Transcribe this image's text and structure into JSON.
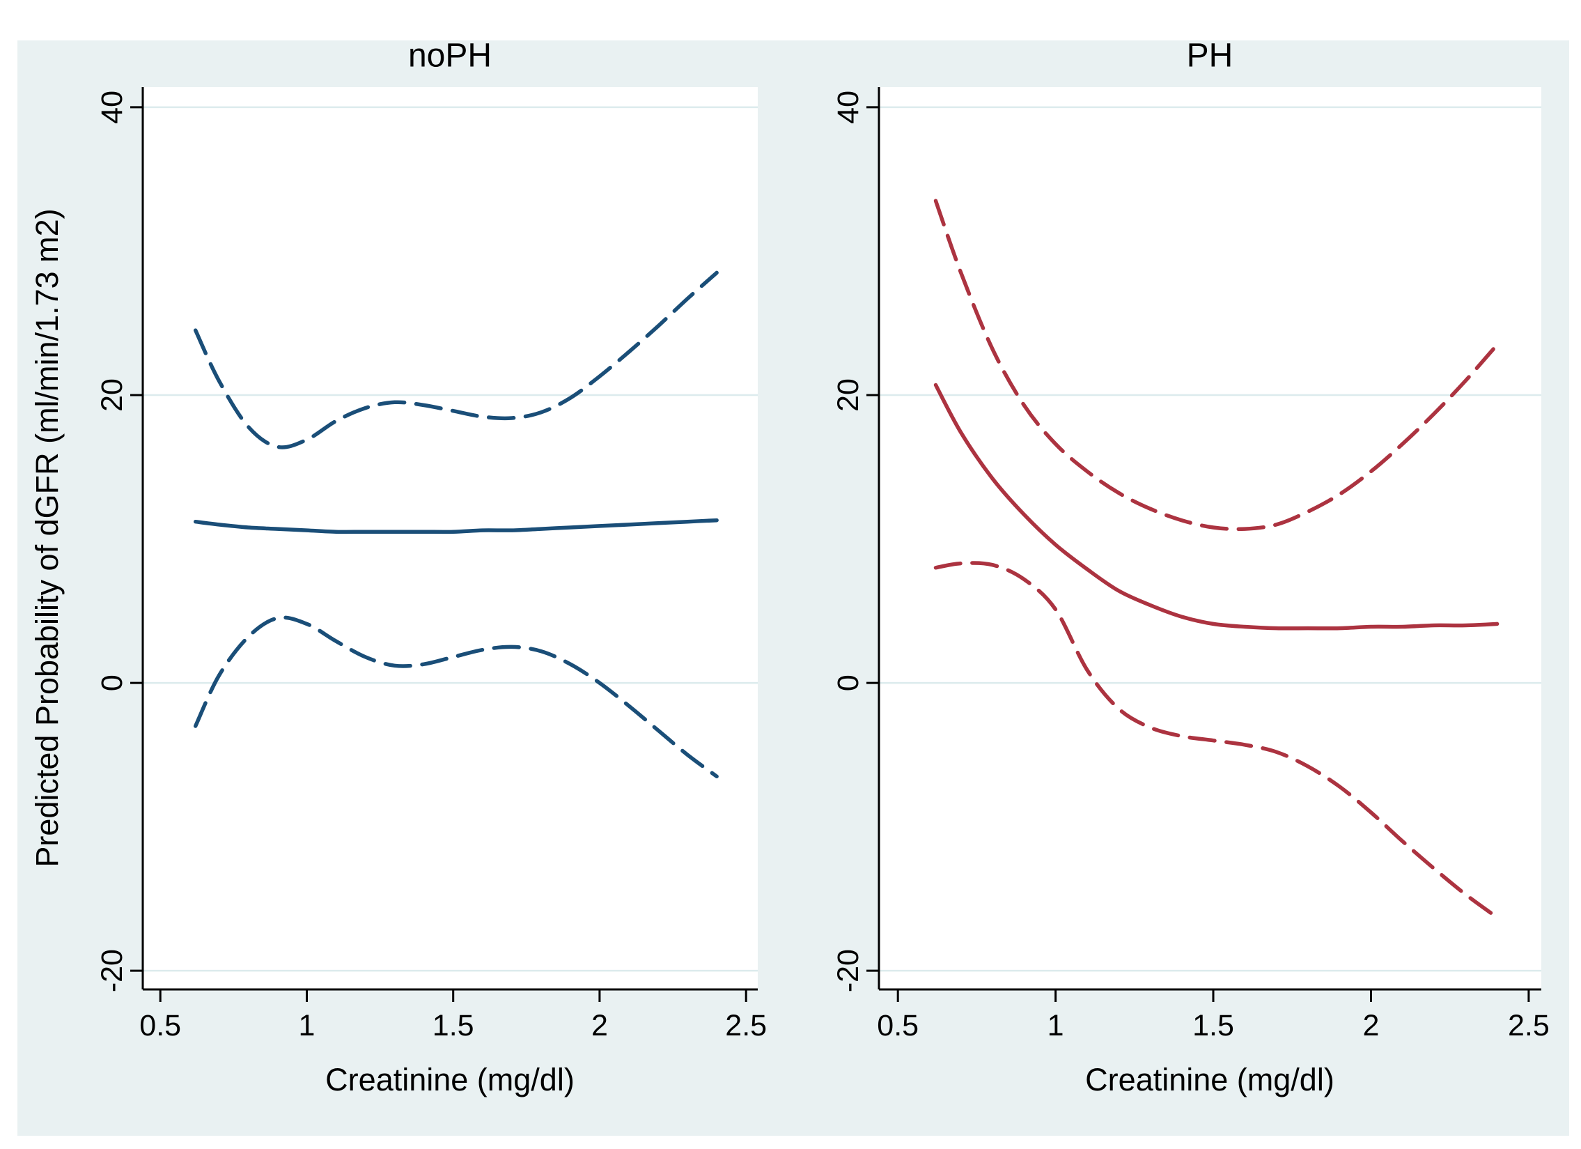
{
  "figure": {
    "y_axis_title": "Predicted Probability of dGFR (ml/min/1.73 m2)",
    "x_axis_title": "Creatinine (mg/dl)"
  },
  "palette": {
    "page_bg": "#ffffff",
    "region_bg": "#e9f1f2",
    "plot_bg": "#ffffff",
    "gridline": "#dcebed",
    "axis": "#000000",
    "navy": "#1a4e78",
    "maroon": "#ac3340"
  },
  "chart_data": [
    {
      "type": "line",
      "title": "noPH",
      "xlabel": "Creatinine (mg/dl)",
      "ylabel": "Predicted Probability of dGFR (ml/min/1.73 m2)",
      "xlim": [
        0.44,
        2.54
      ],
      "ylim": [
        -21.3,
        41.4
      ],
      "x_ticks": [
        0.5,
        1,
        1.5,
        2,
        2.5
      ],
      "y_ticks": [
        -20,
        0,
        20,
        40
      ],
      "grid": "horizontal gridlines at y ticks",
      "legend": "none",
      "color": "#1a4e78",
      "x": [
        0.62,
        0.7,
        0.8,
        0.9,
        1.0,
        1.1,
        1.2,
        1.3,
        1.4,
        1.5,
        1.6,
        1.7,
        1.8,
        1.9,
        2.0,
        2.1,
        2.2,
        2.3,
        2.4
      ],
      "series": [
        {
          "name": "upper-ci",
          "style": "dashed",
          "x": [
            0.62,
            0.7,
            0.8,
            0.9,
            1.0,
            1.1,
            1.2,
            1.3,
            1.4,
            1.5,
            1.6,
            1.7,
            1.8,
            1.9,
            2.0,
            2.1,
            2.2,
            2.3,
            2.4
          ],
          "y": [
            24.5,
            21.0,
            17.8,
            16.4,
            16.9,
            18.2,
            19.1,
            19.5,
            19.3,
            18.9,
            18.5,
            18.4,
            18.8,
            19.8,
            21.3,
            23.0,
            24.8,
            26.7,
            28.5
          ]
        },
        {
          "name": "fit",
          "style": "solid",
          "x": [
            0.62,
            0.7,
            0.8,
            0.9,
            1.0,
            1.1,
            1.2,
            1.3,
            1.4,
            1.5,
            1.6,
            1.7,
            1.8,
            1.9,
            2.0,
            2.1,
            2.2,
            2.3,
            2.4
          ],
          "y": [
            11.2,
            11.0,
            10.8,
            10.7,
            10.6,
            10.5,
            10.5,
            10.5,
            10.5,
            10.5,
            10.6,
            10.6,
            10.7,
            10.8,
            10.9,
            11.0,
            11.1,
            11.2,
            11.3
          ]
        },
        {
          "name": "lower-ci",
          "style": "dashed",
          "x": [
            0.62,
            0.7,
            0.8,
            0.9,
            1.0,
            1.1,
            1.2,
            1.3,
            1.4,
            1.5,
            1.6,
            1.7,
            1.8,
            1.9,
            2.0,
            2.1,
            2.2,
            2.3,
            2.4
          ],
          "y": [
            -3.0,
            0.5,
            3.2,
            4.5,
            4.1,
            2.9,
            1.8,
            1.2,
            1.3,
            1.8,
            2.3,
            2.5,
            2.2,
            1.3,
            0.0,
            -1.6,
            -3.3,
            -5.0,
            -6.5
          ]
        }
      ]
    },
    {
      "type": "line",
      "title": "PH",
      "xlabel": "Creatinine (mg/dl)",
      "ylabel": "Predicted Probability of dGFR (ml/min/1.73 m2)",
      "xlim": [
        0.44,
        2.54
      ],
      "ylim": [
        -21.3,
        41.4
      ],
      "x_ticks": [
        0.5,
        1,
        1.5,
        2,
        2.5
      ],
      "y_ticks": [
        -20,
        0,
        20,
        40
      ],
      "grid": "horizontal gridlines at y ticks",
      "legend": "none",
      "color": "#ac3340",
      "x": [
        0.62,
        0.7,
        0.8,
        0.9,
        1.0,
        1.1,
        1.2,
        1.3,
        1.4,
        1.5,
        1.6,
        1.7,
        1.8,
        1.9,
        2.0,
        2.1,
        2.2,
        2.3,
        2.4
      ],
      "series": [
        {
          "name": "upper-ci",
          "style": "dashed",
          "x": [
            0.62,
            0.7,
            0.8,
            0.9,
            1.0,
            1.1,
            1.2,
            1.3,
            1.4,
            1.5,
            1.6,
            1.7,
            1.8,
            1.9,
            2.0,
            2.1,
            2.2,
            2.3,
            2.4
          ],
          "y": [
            33.5,
            28.5,
            23.2,
            19.3,
            16.6,
            14.7,
            13.2,
            12.1,
            11.3,
            10.8,
            10.7,
            11.0,
            11.9,
            13.1,
            14.7,
            16.6,
            18.7,
            21.0,
            23.5
          ]
        },
        {
          "name": "fit",
          "style": "solid",
          "x": [
            0.62,
            0.7,
            0.8,
            0.9,
            1.0,
            1.1,
            1.2,
            1.3,
            1.4,
            1.5,
            1.6,
            1.7,
            1.8,
            1.9,
            2.0,
            2.1,
            2.2,
            2.3,
            2.4
          ],
          "y": [
            20.7,
            17.4,
            14.2,
            11.7,
            9.6,
            7.9,
            6.4,
            5.4,
            4.6,
            4.1,
            3.9,
            3.8,
            3.8,
            3.8,
            3.9,
            3.9,
            4.0,
            4.0,
            4.1
          ]
        },
        {
          "name": "lower-ci",
          "style": "dashed",
          "x": [
            0.62,
            0.7,
            0.8,
            0.9,
            1.0,
            1.1,
            1.2,
            1.3,
            1.4,
            1.5,
            1.6,
            1.7,
            1.8,
            1.9,
            2.0,
            2.1,
            2.2,
            2.3,
            2.4
          ],
          "y": [
            8.0,
            8.3,
            8.2,
            7.2,
            5.1,
            0.9,
            -1.8,
            -3.1,
            -3.7,
            -4.0,
            -4.3,
            -4.8,
            -5.8,
            -7.2,
            -9.0,
            -11.0,
            -12.9,
            -14.7,
            -16.3
          ]
        }
      ]
    }
  ]
}
